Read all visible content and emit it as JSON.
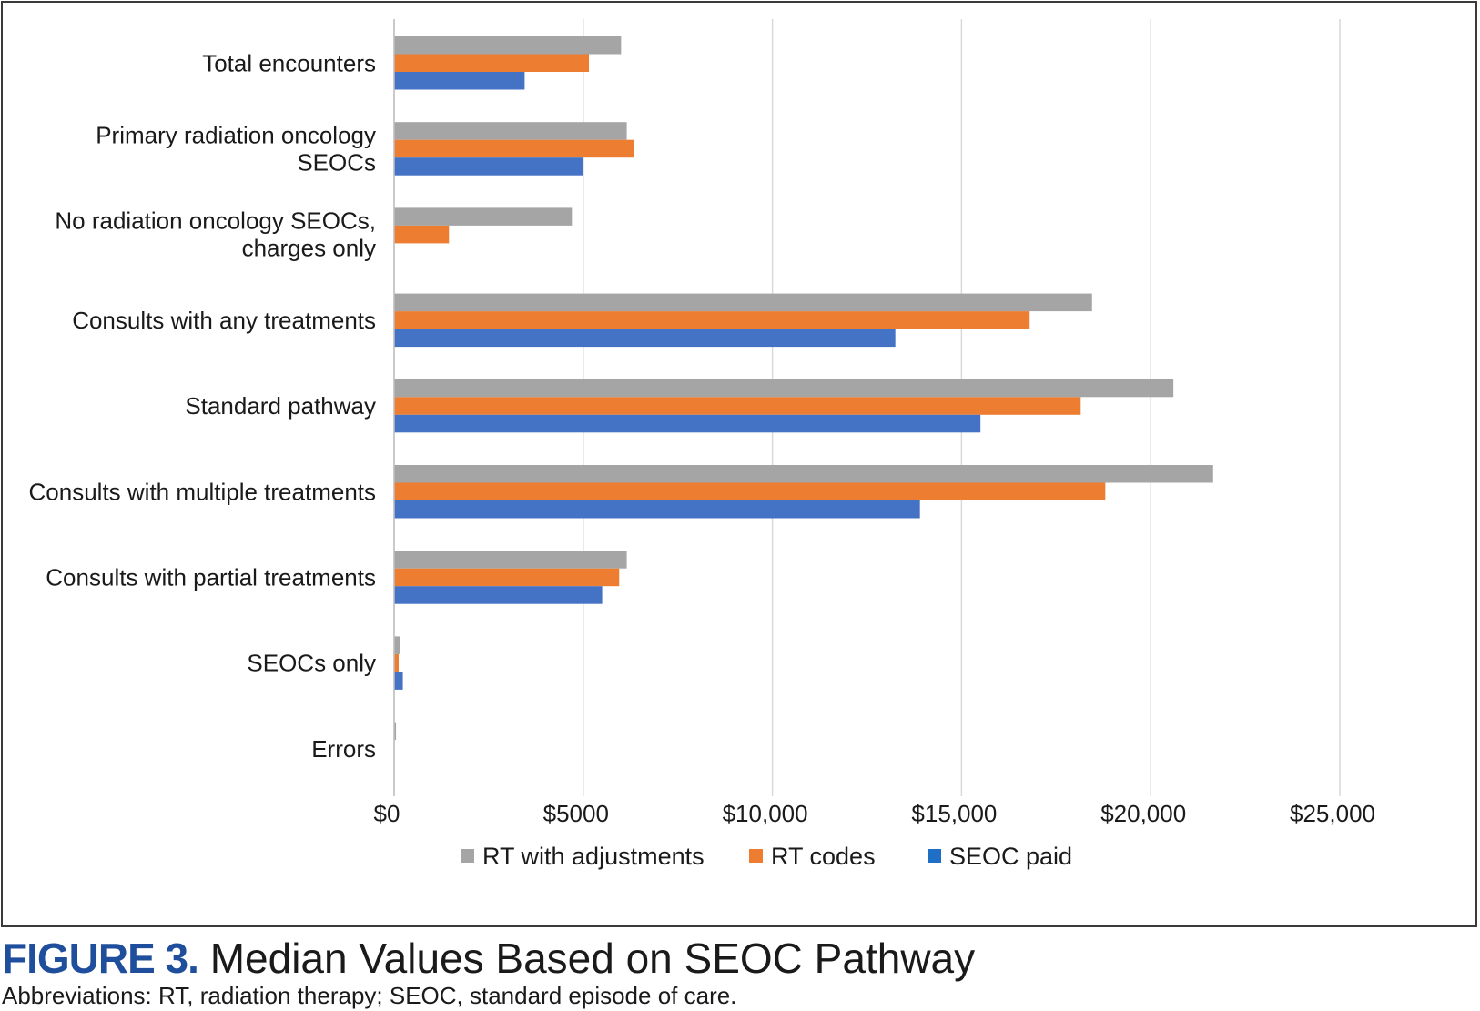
{
  "figure": {
    "label": "FIGURE 3.",
    "title": "Median Values Based on SEOC Pathway",
    "abbreviations": "Abbreviations: RT, radiation therapy; SEOC, standard episode of care."
  },
  "chart_data": {
    "type": "bar",
    "orientation": "horizontal",
    "title": "Median Values Based on SEOC Pathway",
    "xlabel": "",
    "ylabel": "",
    "xlim": [
      0,
      25000
    ],
    "grid": true,
    "legend_position": "bottom",
    "categories": [
      [
        "Total encounters"
      ],
      [
        "Primary radiation oncology",
        "SEOCs"
      ],
      [
        "No radiation oncology SEOCs,",
        "charges only"
      ],
      [
        "Consults with any treatments"
      ],
      [
        "Standard pathway"
      ],
      [
        "Consults with multiple treatments"
      ],
      [
        "Consults with partial treatments"
      ],
      [
        "SEOCs only"
      ],
      [
        "Errors"
      ]
    ],
    "series": [
      {
        "name": "RT with adjustments",
        "color": "#a5a5a5",
        "values": [
          6000,
          6150,
          4700,
          18450,
          20600,
          21650,
          6150,
          150,
          50
        ]
      },
      {
        "name": "RT codes",
        "color": "#ed7d31",
        "values": [
          5150,
          6350,
          1450,
          16800,
          18150,
          18800,
          5950,
          120,
          0
        ]
      },
      {
        "name": "SEOC paid",
        "color": "#4472c4",
        "values": [
          3450,
          5000,
          0,
          13250,
          15500,
          13900,
          5500,
          230,
          0
        ]
      }
    ],
    "ticks": [
      {
        "value": 0,
        "label": "$0"
      },
      {
        "value": 5000,
        "label": "$5000"
      },
      {
        "value": 10000,
        "label": "$10,000"
      },
      {
        "value": 15000,
        "label": "$15,000"
      },
      {
        "value": 20000,
        "label": "$20,000"
      },
      {
        "value": 25000,
        "label": "$25,000"
      }
    ],
    "legend": [
      {
        "label": "RT with adjustments",
        "color": "#a5a5a5"
      },
      {
        "label": "RT codes",
        "color": "#ed7d31"
      },
      {
        "label": "SEOC paid",
        "color": "#1f6fc5"
      }
    ]
  }
}
